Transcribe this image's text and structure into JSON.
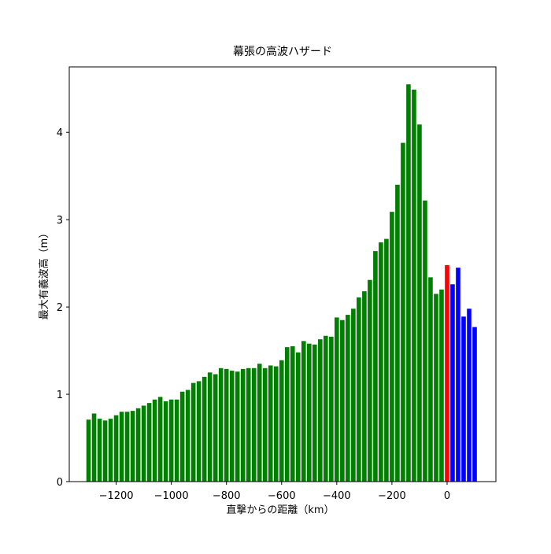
{
  "chart_data": {
    "type": "bar",
    "title": "幕張の高波ハザード",
    "x_label": "直撃からの距離（km）",
    "y_label": "最大有義波高（m）",
    "x": [
      -1300,
      -1280,
      -1260,
      -1240,
      -1220,
      -1200,
      -1180,
      -1160,
      -1140,
      -1120,
      -1100,
      -1080,
      -1060,
      -1040,
      -1020,
      -1000,
      -980,
      -960,
      -940,
      -920,
      -900,
      -880,
      -860,
      -840,
      -820,
      -800,
      -780,
      -760,
      -740,
      -720,
      -700,
      -680,
      -660,
      -640,
      -620,
      -600,
      -580,
      -560,
      -540,
      -520,
      -500,
      -480,
      -460,
      -440,
      -420,
      -400,
      -380,
      -360,
      -340,
      -320,
      -300,
      -280,
      -260,
      -240,
      -220,
      -200,
      -180,
      -160,
      -140,
      -120,
      -100,
      -80,
      -60,
      -40,
      -20,
      0,
      20,
      40,
      60,
      80,
      100
    ],
    "values": [
      0.71,
      0.78,
      0.72,
      0.7,
      0.72,
      0.76,
      0.8,
      0.8,
      0.81,
      0.84,
      0.87,
      0.9,
      0.94,
      0.97,
      0.92,
      0.94,
      0.94,
      1.03,
      1.05,
      1.13,
      1.15,
      1.2,
      1.25,
      1.23,
      1.3,
      1.29,
      1.27,
      1.26,
      1.29,
      1.3,
      1.3,
      1.35,
      1.3,
      1.33,
      1.32,
      1.39,
      1.54,
      1.55,
      1.48,
      1.61,
      1.58,
      1.57,
      1.63,
      1.67,
      1.66,
      1.88,
      1.85,
      1.91,
      1.98,
      2.11,
      2.18,
      2.31,
      2.64,
      2.74,
      2.78,
      3.09,
      3.4,
      3.88,
      4.55,
      4.49,
      4.09,
      3.22,
      2.34,
      2.15,
      2.2,
      2.48,
      2.26,
      2.45,
      1.89,
      1.98,
      1.77
    ],
    "colors": [
      "#008000",
      "#008000",
      "#008000",
      "#008000",
      "#008000",
      "#008000",
      "#008000",
      "#008000",
      "#008000",
      "#008000",
      "#008000",
      "#008000",
      "#008000",
      "#008000",
      "#008000",
      "#008000",
      "#008000",
      "#008000",
      "#008000",
      "#008000",
      "#008000",
      "#008000",
      "#008000",
      "#008000",
      "#008000",
      "#008000",
      "#008000",
      "#008000",
      "#008000",
      "#008000",
      "#008000",
      "#008000",
      "#008000",
      "#008000",
      "#008000",
      "#008000",
      "#008000",
      "#008000",
      "#008000",
      "#008000",
      "#008000",
      "#008000",
      "#008000",
      "#008000",
      "#008000",
      "#008000",
      "#008000",
      "#008000",
      "#008000",
      "#008000",
      "#008000",
      "#008000",
      "#008000",
      "#008000",
      "#008000",
      "#008000",
      "#008000",
      "#008000",
      "#008000",
      "#008000",
      "#008000",
      "#008000",
      "#008000",
      "#008000",
      "#008000",
      "#ff0000",
      "#0000ff",
      "#0000ff",
      "#0000ff",
      "#0000ff",
      "#0000ff"
    ],
    "bar_width": 16,
    "xlim": [
      -1370,
      177
    ],
    "ylim": [
      0,
      4.75
    ],
    "xticks": [
      {
        "value": -1200,
        "label": "−1200"
      },
      {
        "value": -1000,
        "label": "−1000"
      },
      {
        "value": -800,
        "label": "−800"
      },
      {
        "value": -600,
        "label": "−600"
      },
      {
        "value": -400,
        "label": "−400"
      },
      {
        "value": -200,
        "label": "−200"
      },
      0
    ],
    "yticks": [
      0,
      1,
      2,
      3,
      4
    ]
  }
}
